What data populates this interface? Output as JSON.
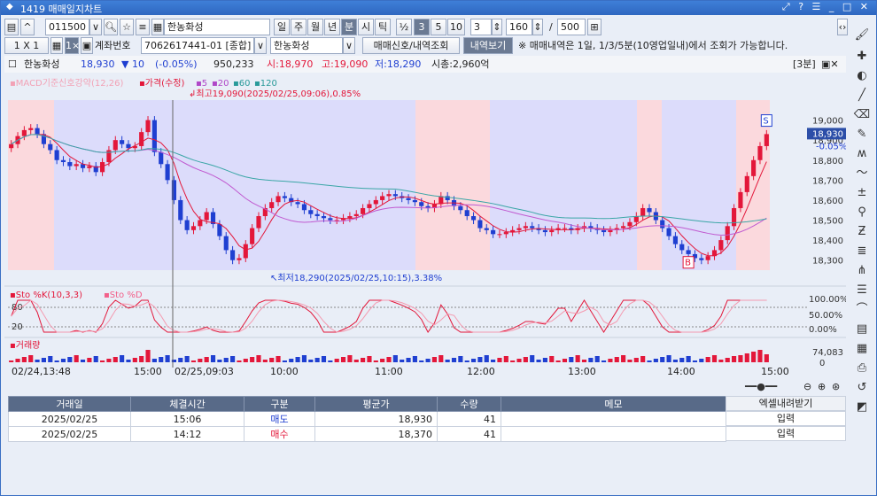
{
  "window": {
    "title": "1419 매매일지차트",
    "controls": "⤢ ? ☰ _ □ ✕"
  },
  "toolbar1": {
    "code": "011500",
    "name": "한농화성",
    "period_buttons": [
      "일",
      "주",
      "월",
      "년",
      "분",
      "시",
      "틱"
    ],
    "active_period": "분",
    "ratio_label": "½",
    "interval_buttons": [
      "3",
      "5",
      "10"
    ],
    "active_interval": "3",
    "interval_value": "3",
    "count_value": "160",
    "total_value": "500",
    "slash": "/"
  },
  "toolbar2": {
    "layout_label": "1 X 1",
    "account_label": "계좌번호",
    "account_value": "7062617441-01 [종합]",
    "stock_select": "한농화성",
    "btn_signal": "매매신호/내역조회",
    "btn_history": "내역보기",
    "notice": "※ 매매내역은 1일, 1/3/5분(10영업일내)에서 조회가 가능합니다."
  },
  "info_bar": {
    "name": "한농화성",
    "price": "18,930",
    "change": "▼ 10",
    "pct": "(-0.05%)",
    "volume": "950,233",
    "open": "시:18,970",
    "high": "고:19,090",
    "low": "저:18,290",
    "mcap": "시총:2,960억",
    "period_badge": "[3분]"
  },
  "chart_data": {
    "type": "candlestick",
    "legend_main": [
      "MACD기준신호강약(12,26)",
      "가격(수정)",
      "5",
      "20",
      "60",
      "120"
    ],
    "price_axis": [
      "19,000",
      "18,900",
      "18,800",
      "18,700",
      "18,600",
      "18,500",
      "18,400",
      "18,300"
    ],
    "current_price": "18,930",
    "current_pct": "-0.05%",
    "high_annot": "최고19,090(2025/02/25,09:06),0.85%",
    "low_annot": "최저18,290(2025/02/25,10:15),3.38%",
    "time_axis": [
      "02/24,13:48",
      "15:00",
      "02/25,09:03",
      "10:00",
      "11:00",
      "12:00",
      "13:00",
      "14:00",
      "15:00"
    ],
    "sto_legend": [
      "Sto %K(10,3,3)",
      "Sto %D"
    ],
    "sto_axis": [
      "100.00%",
      "50.00%",
      "0.00%"
    ],
    "sto_levels": [
      "80",
      "20"
    ],
    "vol_legend": "거래량",
    "vol_axis": "74,083",
    "vol_axis_zero": "0",
    "buy_marker": "B",
    "sell_marker": "S",
    "price_range": [
      18250,
      19100
    ],
    "closes": [
      18880,
      18920,
      18950,
      18960,
      18930,
      18880,
      18850,
      18800,
      18790,
      18770,
      18780,
      18760,
      18770,
      18740,
      18790,
      18850,
      18900,
      18880,
      18860,
      18870,
      18940,
      19000,
      18840,
      18780,
      18700,
      18600,
      18500,
      18450,
      18470,
      18500,
      18540,
      18480,
      18420,
      18350,
      18300,
      18310,
      18380,
      18460,
      18520,
      18560,
      18590,
      18620,
      18610,
      18590,
      18580,
      18550,
      18530,
      18520,
      18510,
      18500,
      18500,
      18510,
      18520,
      18530,
      18560,
      18580,
      18600,
      18620,
      18630,
      18620,
      18610,
      18600,
      18590,
      18570,
      18560,
      18580,
      18620,
      18600,
      18570,
      18550,
      18520,
      18500,
      18460,
      18450,
      18430,
      18430,
      18440,
      18450,
      18460,
      18470,
      18460,
      18450,
      18440,
      18450,
      18460,
      18460,
      18450,
      18460,
      18470,
      18460,
      18450,
      18440,
      18450,
      18460,
      18470,
      18490,
      18520,
      18560,
      18540,
      18500,
      18460,
      18420,
      18380,
      18350,
      18330,
      18310,
      18300,
      18320,
      18350,
      18400,
      18470,
      18560,
      18640,
      18720,
      18800,
      18870,
      18930
    ]
  },
  "table": {
    "headers": [
      "거래일",
      "체결시간",
      "구분",
      "평균가",
      "수량",
      "메모"
    ],
    "rows": [
      {
        "date": "2025/02/25",
        "time": "15:06",
        "side": "매도",
        "price": "18,930",
        "qty": "41",
        "memo": ""
      },
      {
        "date": "2025/02/25",
        "time": "14:12",
        "side": "매수",
        "price": "18,370",
        "qty": "41",
        "memo": ""
      }
    ],
    "side_header": "엑셀내려받기",
    "input_label": "입력"
  },
  "colors": {
    "up": "#e3173a",
    "down": "#1f3fd1",
    "pink_bg": "#fbd9dd",
    "blue_bg": "#dcdcfb"
  }
}
